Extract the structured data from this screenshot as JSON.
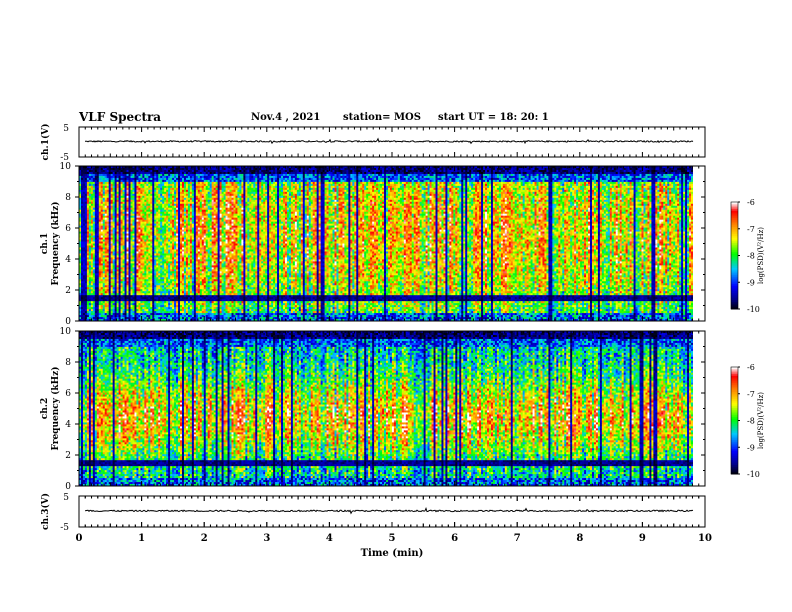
{
  "header": {
    "title": "VLF Spectra",
    "date": "Nov.4 , 2021",
    "station": "station= MOS",
    "start_ut": "start UT =  18: 20: 1"
  },
  "chart_data": [
    {
      "type": "line",
      "panel": "ch1-waveform",
      "ylabel": "ch.1(V)",
      "yticks": [
        "5",
        "-5"
      ],
      "ylim": [
        -5,
        5
      ],
      "xlim": [
        0,
        10
      ],
      "series": [
        {
          "values_description_level": 0.2
        }
      ]
    },
    {
      "type": "heatmap",
      "panel": "ch1-spectrogram",
      "ylabel": "ch.1\nFrequency (kHz)",
      "yticks": [
        "0",
        "2",
        "4",
        "6",
        "8",
        "10"
      ],
      "ylim": [
        0,
        10
      ],
      "xlim": [
        0,
        10
      ],
      "colorbar": {
        "label": "log(PSD)(V²/Hz)",
        "ticks": [
          "-6",
          "-7",
          "-8",
          "-9",
          "-10"
        ],
        "range": [
          -10,
          -6
        ]
      }
    },
    {
      "type": "heatmap",
      "panel": "ch2-spectrogram",
      "ylabel": "ch.2\nFrequency (kHz)",
      "yticks": [
        "0",
        "2",
        "4",
        "6",
        "8",
        "10"
      ],
      "ylim": [
        0,
        10
      ],
      "xlim": [
        0,
        10
      ],
      "colorbar": {
        "label": "log(PSD)(V²/Hz)",
        "ticks": [
          "-6",
          "-7",
          "-8",
          "-9",
          "-10"
        ],
        "range": [
          -10,
          -6
        ]
      }
    },
    {
      "type": "line",
      "panel": "ch3-waveform",
      "ylabel": "ch.3(V)",
      "yticks": [
        "5",
        "-5"
      ],
      "ylim": [
        -5,
        5
      ],
      "xlim": [
        0,
        10
      ],
      "xlabel": "Time (min)",
      "xticks": [
        "0",
        "1",
        "2",
        "3",
        "4",
        "5",
        "6",
        "7",
        "8",
        "9",
        "10"
      ]
    }
  ],
  "colors": {
    "colormap": [
      "#000000",
      "#00008b",
      "#0000ff",
      "#00bfff",
      "#00ff00",
      "#ffff00",
      "#ff8000",
      "#ff0000",
      "#ffffff"
    ]
  }
}
